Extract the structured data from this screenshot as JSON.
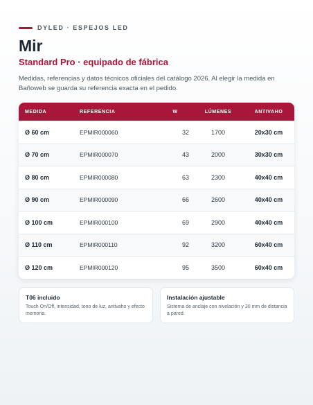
{
  "header": {
    "eyebrow": "DYLED · ESPEJOS LED",
    "title": "Mir",
    "subtitle": "Standard Pro · equipado de fábrica",
    "description": "Medidas, referencias y datos técnicos oficiales del catálogo 2026. Al elegir la medida en Bañoweb se guarda su referencia exacta en el pedido."
  },
  "table": {
    "columns": [
      "MEDIDA",
      "REFERENCIA",
      "W",
      "LÚMENES",
      "ANTIVAHO"
    ],
    "rows": [
      [
        "Ø 60 cm",
        "EPMIR000060",
        "32",
        "1700",
        "20x30 cm"
      ],
      [
        "Ø 70 cm",
        "EPMIR000070",
        "43",
        "2000",
        "30x30 cm"
      ],
      [
        "Ø 80 cm",
        "EPMIR000080",
        "63",
        "2300",
        "40x40 cm"
      ],
      [
        "Ø 90 cm",
        "EPMIR000090",
        "66",
        "2600",
        "40x40 cm"
      ],
      [
        "Ø 100 cm",
        "EPMIR000100",
        "69",
        "2900",
        "40x40 cm"
      ],
      [
        "Ø 110 cm",
        "EPMIR000110",
        "92",
        "3200",
        "60x40 cm"
      ],
      [
        "Ø 120 cm",
        "EPMIR000120",
        "95",
        "3500",
        "60x40 cm"
      ]
    ]
  },
  "cards": [
    {
      "title": "T06 incluido",
      "text": "Touch On/Off, intensidad, tono de luz, antivaho y efecto memoria."
    },
    {
      "title": "Instalación ajustable",
      "text": "Sistema de anclaje con nivelación y 30 mm de distancia a pared."
    }
  ]
}
